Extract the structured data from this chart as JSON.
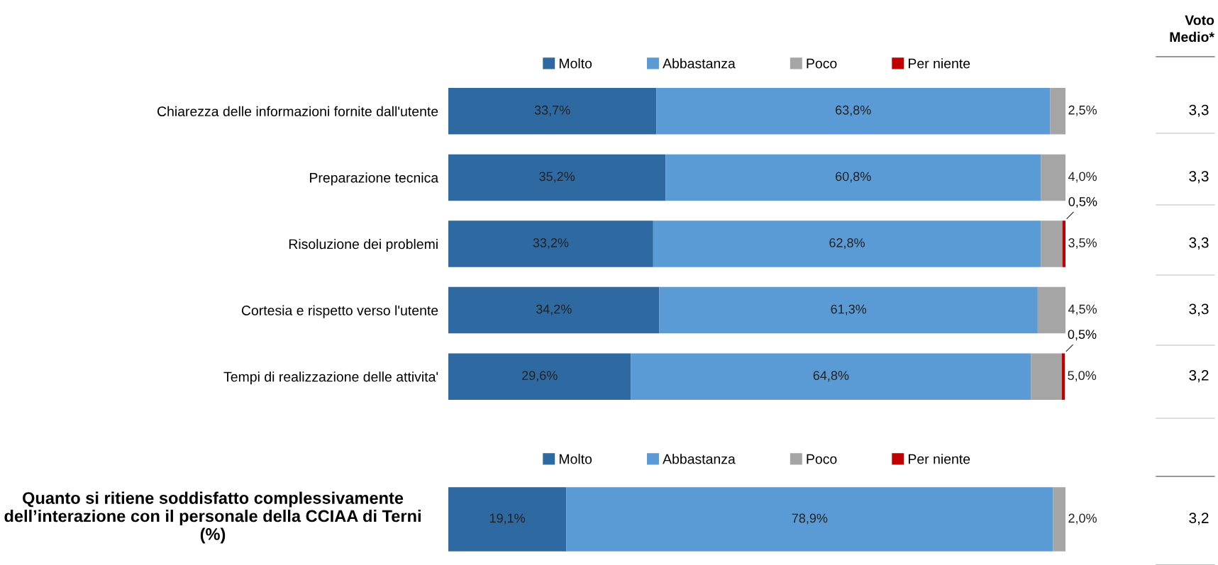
{
  "chart_data": [
    {
      "type": "bar",
      "orientation": "horizontal",
      "stacked": true,
      "legend": "top",
      "categories": [
        "Chiarezza delle informazioni fornite dall'utente",
        "Preparazione tecnica",
        "Risoluzione dei problemi",
        "Cortesia e rispetto verso l'utente",
        "Tempi di realizzazione delle attivita'"
      ],
      "series": [
        {
          "name": "Molto",
          "color": "#2e6aa1",
          "values": [
            33.7,
            35.2,
            33.2,
            34.2,
            29.6
          ],
          "value_labels": [
            "33,7%",
            "35,2%",
            "33,2%",
            "34,2%",
            "29,6%"
          ]
        },
        {
          "name": "Abbastanza",
          "color": "#5b9bd5",
          "values": [
            63.8,
            60.8,
            62.8,
            61.3,
            64.8
          ],
          "value_labels": [
            "63,8%",
            "60,8%",
            "62,8%",
            "61,3%",
            "64,8%"
          ]
        },
        {
          "name": "Poco",
          "color": "#a5a5a5",
          "values": [
            2.5,
            4.0,
            3.5,
            4.5,
            5.0
          ],
          "value_labels": [
            "2,5%",
            "4,0%",
            "3,5%",
            "4,5%",
            "5,0%"
          ]
        },
        {
          "name": "Per niente",
          "color": "#c00000",
          "values": [
            null,
            null,
            0.5,
            null,
            0.5
          ],
          "value_labels": [
            null,
            null,
            "0,5%",
            null,
            "0,5%"
          ]
        }
      ],
      "annotations": [
        "Voto Medio*",
        "3,3",
        "3,3",
        "3,3",
        "3,3",
        "3,2"
      ]
    },
    {
      "type": "bar",
      "orientation": "horizontal",
      "stacked": true,
      "legend": "top",
      "categories": [
        "Quanto si ritiene soddisfatto complessivamente dell’interazione con il personale della CCIAA di Terni (%)"
      ],
      "series": [
        {
          "name": "Molto",
          "color": "#2e6aa1",
          "values": [
            19.1
          ],
          "value_labels": [
            "19,1%"
          ]
        },
        {
          "name": "Abbastanza",
          "color": "#5b9bd5",
          "values": [
            78.9
          ],
          "value_labels": [
            "78,9%"
          ]
        },
        {
          "name": "Poco",
          "color": "#a5a5a5",
          "values": [
            2.0
          ],
          "value_labels": [
            "2,0%"
          ]
        },
        {
          "name": "Per niente",
          "color": "#c00000",
          "values": [
            null
          ],
          "value_labels": [
            null
          ]
        }
      ],
      "annotations": [
        "3,2"
      ]
    }
  ]
}
